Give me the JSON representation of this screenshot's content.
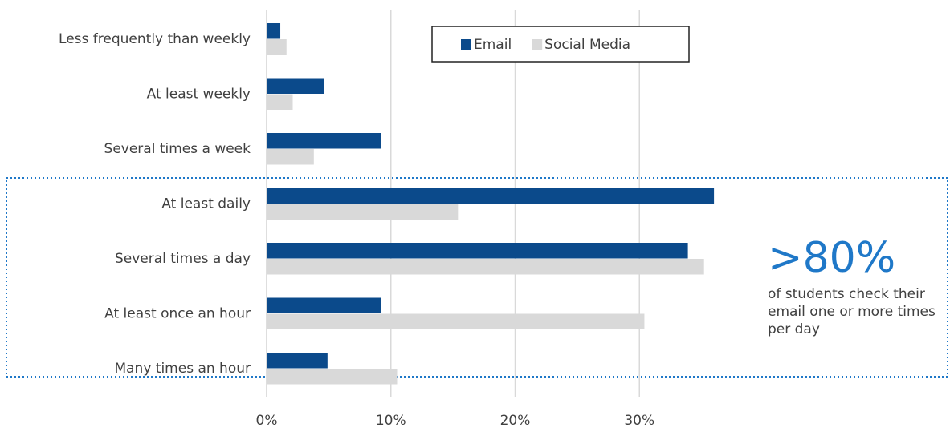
{
  "chart_data": {
    "type": "barh",
    "categories": [
      "Less frequently than weekly",
      "At least weekly",
      "Several times a week",
      "At least daily",
      "Several times a day",
      "At least once an hour",
      "Many times an hour"
    ],
    "series": [
      {
        "name": "Email",
        "color": "#0b4a8b",
        "values": [
          1.1,
          4.6,
          9.2,
          36.0,
          33.9,
          9.2,
          4.9
        ]
      },
      {
        "name": "Social Media",
        "color": "#d9d9d9",
        "values": [
          1.6,
          2.1,
          3.8,
          15.4,
          35.2,
          30.4,
          10.5
        ]
      }
    ],
    "xlim": [
      0,
      40
    ],
    "xticks": [
      {
        "value": 0,
        "label": "0%"
      },
      {
        "value": 10,
        "label": "10%"
      },
      {
        "value": 20,
        "label": "20%"
      },
      {
        "value": 30,
        "label": "30%"
      }
    ],
    "grid": true,
    "annotation": {
      "headline": ">80%",
      "text": "of students check their email one or more times per day"
    }
  }
}
